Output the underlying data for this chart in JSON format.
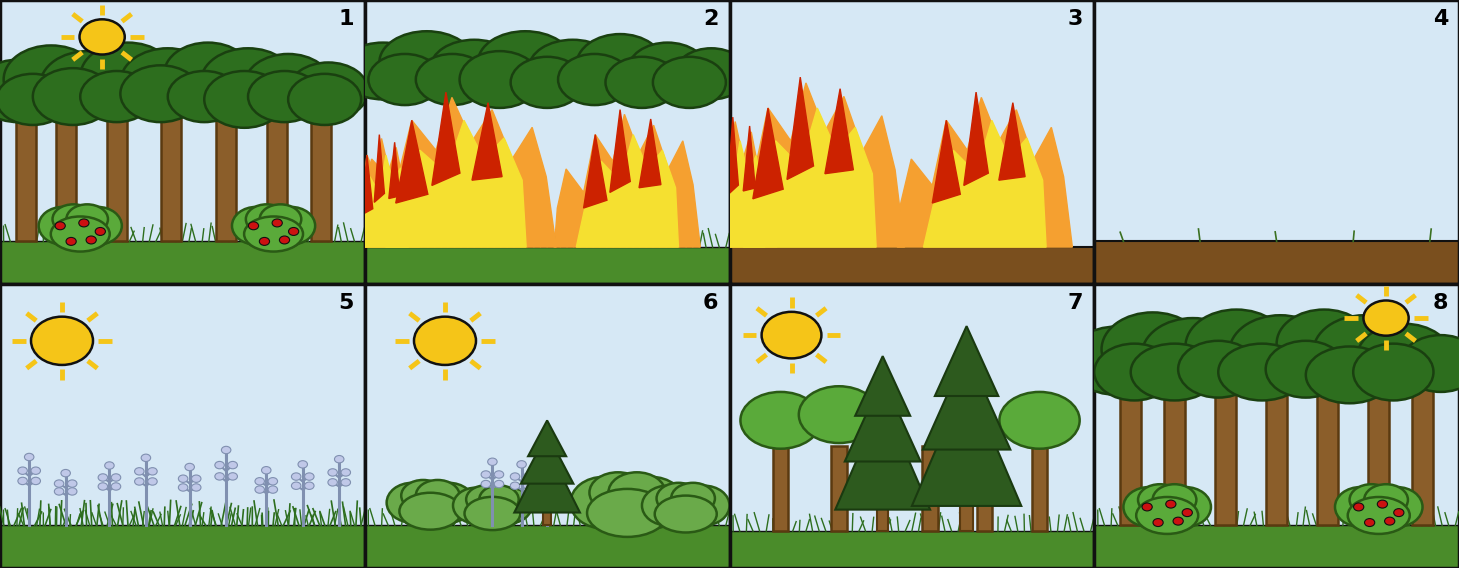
{
  "figsize": [
    14.59,
    5.68
  ],
  "dpi": 100,
  "sky_color": "#d6e8f5",
  "ground_grass_color": "#4a8c2a",
  "ground_grass_dark": "#3a7020",
  "ground_dirt_color": "#7a4f1e",
  "tree_trunk_color": "#8B5E2A",
  "tree_trunk_outline": "#5a3a10",
  "tree_canopy_color": "#2d6e1e",
  "tree_canopy_outline": "#1a4010",
  "bush_color": "#5aaa3a",
  "bush_outline": "#2a5a15",
  "bush_berry_color": "#cc1111",
  "sun_body_color": "#f5c518",
  "sun_ray_color": "#f5c518",
  "flame_base_orange": "#f5a030",
  "flame_mid_yellow": "#f5e030",
  "flame_red": "#cc2200",
  "flame_dark_orange": "#e06010",
  "grass_blade_color": "#2d6e1e",
  "small_plant_stem": "#8090b0",
  "small_plant_flower": "#c0c8e8",
  "conifer_color": "#2d5a1e",
  "conifer_outline": "#1a3a10",
  "panel_border_color": "#111111",
  "panel_number_size": 16
}
